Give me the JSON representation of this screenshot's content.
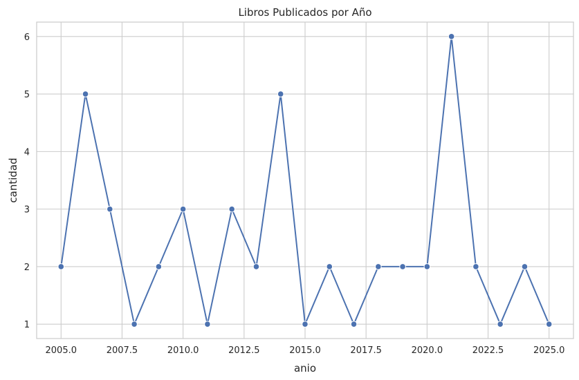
{
  "chart_data": {
    "type": "line",
    "title": "Libros Publicados por Año",
    "xlabel": "anio",
    "ylabel": "cantidad",
    "x": [
      2005,
      2006,
      2007,
      2008,
      2009,
      2010,
      2011,
      2012,
      2013,
      2014,
      2015,
      2016,
      2017,
      2018,
      2019,
      2020,
      2021,
      2022,
      2023,
      2024,
      2025
    ],
    "series": [
      {
        "values": [
          2,
          5,
          3,
          1,
          2,
          3,
          1,
          3,
          2,
          5,
          1,
          2,
          1,
          2,
          2,
          2,
          6,
          2,
          1,
          2,
          1
        ]
      }
    ],
    "x_ticks": [
      "2005.0",
      "2007.5",
      "2010.0",
      "2012.5",
      "2015.0",
      "2017.5",
      "2020.0",
      "2022.5",
      "2025.0"
    ],
    "x_tick_values": [
      2005,
      2007.5,
      2010,
      2012.5,
      2015,
      2017.5,
      2020,
      2022.5,
      2025
    ],
    "y_ticks": [
      "1",
      "2",
      "3",
      "4",
      "5",
      "6"
    ],
    "y_tick_values": [
      1,
      2,
      3,
      4,
      5,
      6
    ],
    "xlim": [
      2004,
      2026
    ],
    "ylim": [
      0.75,
      6.25
    ],
    "grid": true,
    "line_color": "#4c72b0",
    "grid_color": "#cccccc",
    "spine_color": "#cccccc"
  }
}
